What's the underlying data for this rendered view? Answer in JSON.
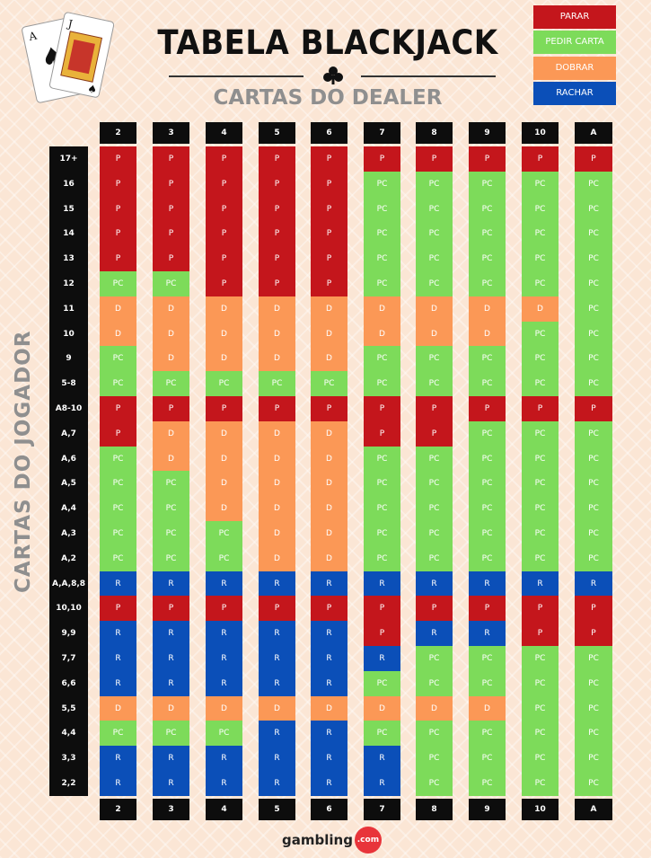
{
  "title": "TABELA BLACKJACK",
  "subtitle": "CARTAS DO DEALER",
  "vertical_label": "CARTAS DO JOGADOR",
  "legend": [
    {
      "label": "PARAR",
      "color": "#c4161c"
    },
    {
      "label": "PEDIR CARTA",
      "color": "#7ddb5a"
    },
    {
      "label": "DOBRAR",
      "color": "#fb9856"
    },
    {
      "label": "RACHAR",
      "color": "#0b4fb8"
    }
  ],
  "dealer_cards": [
    "2",
    "3",
    "4",
    "5",
    "6",
    "7",
    "8",
    "9",
    "10",
    "A"
  ],
  "rows": [
    {
      "label": "17+",
      "cells": [
        "P",
        "P",
        "P",
        "P",
        "P",
        "P",
        "P",
        "P",
        "P",
        "P"
      ]
    },
    {
      "label": "16",
      "cells": [
        "P",
        "P",
        "P",
        "P",
        "P",
        "PC",
        "PC",
        "PC",
        "PC",
        "PC"
      ]
    },
    {
      "label": "15",
      "cells": [
        "P",
        "P",
        "P",
        "P",
        "P",
        "PC",
        "PC",
        "PC",
        "PC",
        "PC"
      ]
    },
    {
      "label": "14",
      "cells": [
        "P",
        "P",
        "P",
        "P",
        "P",
        "PC",
        "PC",
        "PC",
        "PC",
        "PC"
      ]
    },
    {
      "label": "13",
      "cells": [
        "P",
        "P",
        "P",
        "P",
        "P",
        "PC",
        "PC",
        "PC",
        "PC",
        "PC"
      ]
    },
    {
      "label": "12",
      "cells": [
        "PC",
        "PC",
        "P",
        "P",
        "P",
        "PC",
        "PC",
        "PC",
        "PC",
        "PC"
      ]
    },
    {
      "label": "11",
      "cells": [
        "D",
        "D",
        "D",
        "D",
        "D",
        "D",
        "D",
        "D",
        "D",
        "PC"
      ]
    },
    {
      "label": "10",
      "cells": [
        "D",
        "D",
        "D",
        "D",
        "D",
        "D",
        "D",
        "D",
        "PC",
        "PC"
      ]
    },
    {
      "label": "9",
      "cells": [
        "PC",
        "D",
        "D",
        "D",
        "D",
        "PC",
        "PC",
        "PC",
        "PC",
        "PC"
      ]
    },
    {
      "label": "5-8",
      "cells": [
        "PC",
        "PC",
        "PC",
        "PC",
        "PC",
        "PC",
        "PC",
        "PC",
        "PC",
        "PC"
      ]
    },
    {
      "label": "A8-10",
      "cells": [
        "P",
        "P",
        "P",
        "P",
        "P",
        "P",
        "P",
        "P",
        "P",
        "P"
      ]
    },
    {
      "label": "A,7",
      "cells": [
        "P",
        "D",
        "D",
        "D",
        "D",
        "P",
        "P",
        "PC",
        "PC",
        "PC"
      ]
    },
    {
      "label": "A,6",
      "cells": [
        "PC",
        "D",
        "D",
        "D",
        "D",
        "PC",
        "PC",
        "PC",
        "PC",
        "PC"
      ]
    },
    {
      "label": "A,5",
      "cells": [
        "PC",
        "PC",
        "D",
        "D",
        "D",
        "PC",
        "PC",
        "PC",
        "PC",
        "PC"
      ]
    },
    {
      "label": "A,4",
      "cells": [
        "PC",
        "PC",
        "D",
        "D",
        "D",
        "PC",
        "PC",
        "PC",
        "PC",
        "PC"
      ]
    },
    {
      "label": "A,3",
      "cells": [
        "PC",
        "PC",
        "PC",
        "D",
        "D",
        "PC",
        "PC",
        "PC",
        "PC",
        "PC"
      ]
    },
    {
      "label": "A,2",
      "cells": [
        "PC",
        "PC",
        "PC",
        "D",
        "D",
        "PC",
        "PC",
        "PC",
        "PC",
        "PC"
      ]
    },
    {
      "label": "A,A,8,8",
      "cells": [
        "R",
        "R",
        "R",
        "R",
        "R",
        "R",
        "R",
        "R",
        "R",
        "R"
      ]
    },
    {
      "label": "10,10",
      "cells": [
        "P",
        "P",
        "P",
        "P",
        "P",
        "P",
        "P",
        "P",
        "P",
        "P"
      ]
    },
    {
      "label": "9,9",
      "cells": [
        "R",
        "R",
        "R",
        "R",
        "R",
        "P",
        "R",
        "R",
        "P",
        "P"
      ]
    },
    {
      "label": "7,7",
      "cells": [
        "R",
        "R",
        "R",
        "R",
        "R",
        "R",
        "PC",
        "PC",
        "PC",
        "PC"
      ]
    },
    {
      "label": "6,6",
      "cells": [
        "R",
        "R",
        "R",
        "R",
        "R",
        "PC",
        "PC",
        "PC",
        "PC",
        "PC"
      ]
    },
    {
      "label": "5,5",
      "cells": [
        "D",
        "D",
        "D",
        "D",
        "D",
        "D",
        "D",
        "D",
        "PC",
        "PC"
      ]
    },
    {
      "label": "4,4",
      "cells": [
        "PC",
        "PC",
        "PC",
        "R",
        "R",
        "PC",
        "PC",
        "PC",
        "PC",
        "PC"
      ]
    },
    {
      "label": "3,3",
      "cells": [
        "R",
        "R",
        "R",
        "R",
        "R",
        "R",
        "PC",
        "PC",
        "PC",
        "PC"
      ]
    },
    {
      "label": "2,2",
      "cells": [
        "R",
        "R",
        "R",
        "R",
        "R",
        "R",
        "PC",
        "PC",
        "PC",
        "PC"
      ]
    }
  ],
  "logo": {
    "text": "gambling",
    "badge": ".com"
  }
}
